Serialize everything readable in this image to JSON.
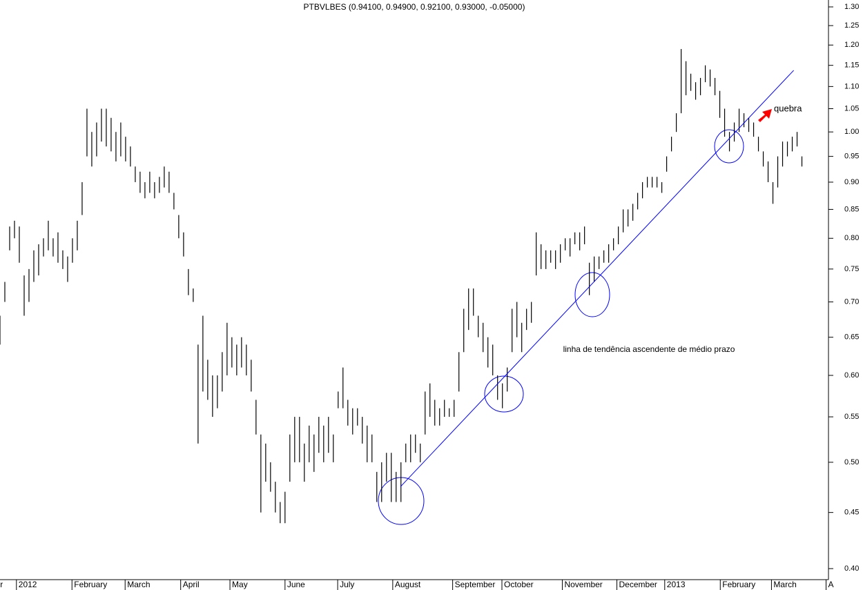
{
  "chart_data": {
    "type": "bar-range",
    "title": "PTBVLBES (0.94100, 0.94900, 0.92100, 0.93000, -0.05000)",
    "log_scale": true,
    "color": "#000000",
    "ylim": [
      0.4,
      1.3
    ],
    "yticks": [
      {
        "value": 0.4,
        "label": "0.40"
      },
      {
        "value": 0.45,
        "label": "0.45"
      },
      {
        "value": 0.5,
        "label": "0.50"
      },
      {
        "value": 0.55,
        "label": "0.55"
      },
      {
        "value": 0.6,
        "label": "0.60"
      },
      {
        "value": 0.65,
        "label": "0.65"
      },
      {
        "value": 0.7,
        "label": "0.70"
      },
      {
        "value": 0.75,
        "label": "0.75"
      },
      {
        "value": 0.8,
        "label": "0.80"
      },
      {
        "value": 0.85,
        "label": "0.85"
      },
      {
        "value": 0.9,
        "label": "0.90"
      },
      {
        "value": 0.95,
        "label": "0.95"
      },
      {
        "value": 1.0,
        "label": "1.00"
      },
      {
        "value": 1.05,
        "label": "1.05"
      },
      {
        "value": 1.1,
        "label": "1.10"
      },
      {
        "value": 1.15,
        "label": "1.15"
      },
      {
        "value": 1.2,
        "label": "1.20"
      },
      {
        "value": 1.25,
        "label": "1.25"
      },
      {
        "value": 1.3,
        "label": "1.30"
      }
    ],
    "xlim": [
      0,
      171.5
    ],
    "xticks": [
      {
        "value": -0.4,
        "label": "r"
      },
      {
        "value": 3.4,
        "label": "2012"
      },
      {
        "value": 14.9,
        "label": "February"
      },
      {
        "value": 25.9,
        "label": "March"
      },
      {
        "value": 37.4,
        "label": "April"
      },
      {
        "value": 47.6,
        "label": "May"
      },
      {
        "value": 59,
        "label": "June"
      },
      {
        "value": 69.9,
        "label": "July"
      },
      {
        "value": 81.3,
        "label": "August"
      },
      {
        "value": 93.7,
        "label": "September"
      },
      {
        "value": 103.9,
        "label": "October"
      },
      {
        "value": 116.4,
        "label": "November"
      },
      {
        "value": 127.7,
        "label": "December"
      },
      {
        "value": 137.6,
        "label": "2013"
      },
      {
        "value": 149.1,
        "label": "February"
      },
      {
        "value": 159.7,
        "label": "March"
      },
      {
        "value": 171,
        "label": "A"
      }
    ],
    "x": [
      0,
      1,
      2,
      3,
      4,
      5,
      6,
      7,
      8,
      9,
      10,
      11,
      12,
      13,
      14,
      15,
      16,
      17,
      18,
      19,
      20,
      21,
      22,
      23,
      24,
      25,
      26,
      27,
      28,
      29,
      30,
      31,
      32,
      33,
      34,
      35,
      36,
      37,
      38,
      39,
      40,
      41,
      42,
      43,
      44,
      45,
      46,
      47,
      48,
      49,
      50,
      51,
      52,
      53,
      54,
      55,
      56,
      57,
      58,
      59,
      60,
      61,
      62,
      63,
      64,
      65,
      66,
      67,
      68,
      69,
      70,
      71,
      72,
      73,
      74,
      75,
      76,
      77,
      78,
      79,
      80,
      81,
      82,
      83,
      84,
      85,
      86,
      87,
      88,
      89,
      90,
      91,
      92,
      93,
      94,
      95,
      96,
      97,
      98,
      99,
      100,
      101,
      102,
      103,
      104,
      105,
      106,
      107,
      108,
      109,
      110,
      111,
      112,
      113,
      114,
      115,
      116,
      117,
      118,
      119,
      120,
      121,
      122,
      123,
      124,
      125,
      126,
      127,
      128,
      129,
      130,
      131,
      132,
      133,
      134,
      135,
      136,
      137,
      138,
      139,
      140,
      141,
      142,
      143,
      144,
      145,
      146,
      147,
      148,
      149,
      150,
      151,
      152,
      153,
      154,
      155,
      156,
      157,
      158,
      159,
      160,
      161,
      162,
      163,
      164,
      165,
      166
    ],
    "high": [
      0.68,
      0.73,
      0.82,
      0.83,
      0.82,
      0.74,
      0.75,
      0.78,
      0.79,
      0.8,
      0.83,
      0.8,
      0.81,
      0.78,
      0.77,
      0.8,
      0.83,
      0.9,
      1.05,
      1.0,
      1.02,
      1.05,
      1.05,
      1.03,
      1.0,
      1.02,
      0.99,
      0.97,
      0.93,
      0.92,
      0.9,
      0.92,
      0.9,
      0.91,
      0.93,
      0.92,
      0.88,
      0.84,
      0.81,
      0.75,
      0.72,
      0.64,
      0.68,
      0.62,
      0.6,
      0.6,
      0.63,
      0.67,
      0.65,
      0.64,
      0.65,
      0.64,
      0.62,
      0.57,
      0.53,
      0.52,
      0.5,
      0.48,
      0.46,
      0.47,
      0.53,
      0.55,
      0.55,
      0.52,
      0.54,
      0.53,
      0.55,
      0.54,
      0.55,
      0.53,
      0.58,
      0.61,
      0.57,
      0.56,
      0.56,
      0.55,
      0.54,
      0.53,
      0.49,
      0.5,
      0.51,
      0.51,
      0.49,
      0.5,
      0.52,
      0.53,
      0.53,
      0.52,
      0.58,
      0.59,
      0.57,
      0.56,
      0.57,
      0.56,
      0.57,
      0.63,
      0.69,
      0.72,
      0.72,
      0.68,
      0.67,
      0.65,
      0.64,
      0.6,
      0.59,
      0.61,
      0.69,
      0.7,
      0.67,
      0.69,
      0.7,
      0.81,
      0.79,
      0.78,
      0.78,
      0.78,
      0.79,
      0.8,
      0.8,
      0.81,
      0.81,
      0.82,
      0.76,
      0.77,
      0.77,
      0.78,
      0.79,
      0.8,
      0.82,
      0.85,
      0.85,
      0.86,
      0.88,
      0.9,
      0.91,
      0.91,
      0.91,
      0.9,
      0.95,
      0.99,
      1.04,
      1.19,
      1.16,
      1.13,
      1.11,
      1.12,
      1.15,
      1.14,
      1.12,
      1.09,
      1.05,
      1.0,
      1.02,
      1.05,
      1.04,
      1.03,
      1.02,
      0.99,
      0.96,
      0.94,
      0.9,
      0.95,
      0.98,
      0.98,
      0.99,
      1.0,
      0.95
    ],
    "low": [
      0.64,
      0.7,
      0.78,
      0.8,
      0.76,
      0.68,
      0.7,
      0.73,
      0.74,
      0.77,
      0.78,
      0.77,
      0.76,
      0.75,
      0.73,
      0.76,
      0.78,
      0.84,
      0.95,
      0.93,
      0.95,
      0.98,
      0.97,
      0.96,
      0.94,
      0.95,
      0.94,
      0.93,
      0.9,
      0.88,
      0.87,
      0.88,
      0.87,
      0.88,
      0.89,
      0.88,
      0.85,
      0.8,
      0.77,
      0.71,
      0.7,
      0.52,
      0.58,
      0.57,
      0.55,
      0.56,
      0.58,
      0.6,
      0.61,
      0.6,
      0.61,
      0.6,
      0.58,
      0.53,
      0.45,
      0.48,
      0.47,
      0.45,
      0.44,
      0.44,
      0.48,
      0.5,
      0.5,
      0.48,
      0.5,
      0.49,
      0.51,
      0.5,
      0.51,
      0.5,
      0.56,
      0.56,
      0.54,
      0.53,
      0.54,
      0.52,
      0.5,
      0.5,
      0.46,
      0.46,
      0.48,
      0.46,
      0.46,
      0.46,
      0.5,
      0.5,
      0.51,
      0.5,
      0.53,
      0.55,
      0.54,
      0.54,
      0.55,
      0.55,
      0.55,
      0.58,
      0.63,
      0.66,
      0.68,
      0.65,
      0.63,
      0.61,
      0.6,
      0.57,
      0.56,
      0.58,
      0.63,
      0.65,
      0.63,
      0.66,
      0.67,
      0.74,
      0.75,
      0.75,
      0.76,
      0.75,
      0.76,
      0.78,
      0.77,
      0.79,
      0.78,
      0.79,
      0.71,
      0.73,
      0.75,
      0.76,
      0.76,
      0.78,
      0.79,
      0.81,
      0.82,
      0.83,
      0.85,
      0.87,
      0.89,
      0.89,
      0.89,
      0.88,
      0.92,
      0.96,
      1.0,
      1.04,
      1.08,
      1.09,
      1.07,
      1.08,
      1.11,
      1.1,
      1.08,
      1.03,
      0.99,
      0.96,
      0.98,
      1.0,
      1.01,
      1.0,
      0.99,
      0.96,
      0.93,
      0.9,
      0.86,
      0.89,
      0.93,
      0.95,
      0.96,
      0.97,
      0.93
    ],
    "trendline": {
      "x": [
        82.9,
        164.3
      ],
      "y": [
        0.475,
        1.138
      ],
      "color": "#0000ff"
    },
    "annotations": [
      {
        "text": "linha de tendência ascendente de médio prazo",
        "color": "#0000aa"
      },
      {
        "text": "quebra",
        "color": "#ff0000"
      }
    ]
  }
}
